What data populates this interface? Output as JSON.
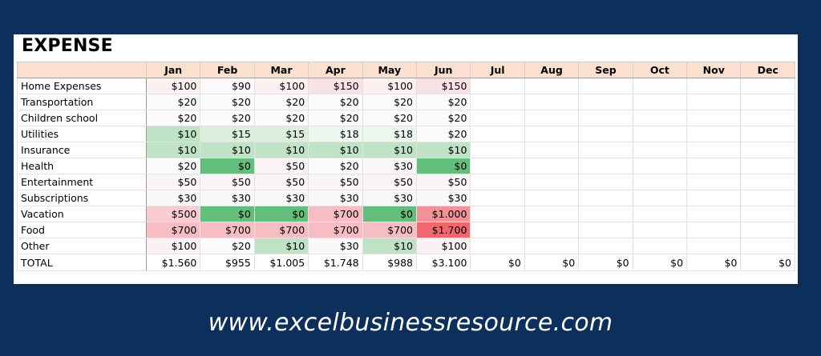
{
  "sheet": {
    "title": "EXPENSE",
    "months": [
      "Jan",
      "Feb",
      "Mar",
      "Apr",
      "May",
      "Jun",
      "Jul",
      "Aug",
      "Sep",
      "Oct",
      "Nov",
      "Dec"
    ],
    "rows": [
      {
        "label": "Home Expenses",
        "values": [
          "$100",
          "$90",
          "$100",
          "$150",
          "$100",
          "$150",
          "",
          "",
          "",
          "",
          "",
          ""
        ],
        "colors": [
          "#fbf1f3",
          "#fdf8f9",
          "#fbf1f3",
          "#f9e2e6",
          "#fbf1f3",
          "#f9e2e6",
          null,
          null,
          null,
          null,
          null,
          null
        ]
      },
      {
        "label": "Transportation",
        "values": [
          "$20",
          "$20",
          "$20",
          "$20",
          "$20",
          "$20",
          "",
          "",
          "",
          "",
          "",
          ""
        ],
        "colors": [
          "#fbfbfc",
          "#fbfbfc",
          "#fbfbfc",
          "#fbfbfc",
          "#fbfbfc",
          "#fbfbfc",
          null,
          null,
          null,
          null,
          null,
          null
        ]
      },
      {
        "label": "Children school",
        "values": [
          "$20",
          "$20",
          "$20",
          "$20",
          "$20",
          "$20",
          "",
          "",
          "",
          "",
          "",
          ""
        ],
        "colors": [
          "#fbfbfc",
          "#fbfbfc",
          "#fbfbfc",
          "#fbfbfc",
          "#fbfbfc",
          "#fbfbfc",
          null,
          null,
          null,
          null,
          null,
          null
        ]
      },
      {
        "label": "Utilities",
        "values": [
          "$10",
          "$15",
          "$15",
          "$18",
          "$18",
          "$20",
          "",
          "",
          "",
          "",
          "",
          ""
        ],
        "colors": [
          "#bfe3c4",
          "#dcefdf",
          "#dcefdf",
          "#eef7ef",
          "#eef7ef",
          "#fbfbfc",
          null,
          null,
          null,
          null,
          null,
          null
        ]
      },
      {
        "label": "Insurance",
        "values": [
          "$10",
          "$10",
          "$10",
          "$10",
          "$10",
          "$10",
          "",
          "",
          "",
          "",
          "",
          ""
        ],
        "colors": [
          "#bfe3c4",
          "#bfe3c4",
          "#bfe3c4",
          "#bfe3c4",
          "#bfe3c4",
          "#bfe3c4",
          null,
          null,
          null,
          null,
          null,
          null
        ]
      },
      {
        "label": "Health",
        "values": [
          "$20",
          "$0",
          "$50",
          "$20",
          "$30",
          "$0",
          "",
          "",
          "",
          "",
          "",
          ""
        ],
        "colors": [
          "#fbfbfc",
          "#63be7b",
          "#fbf4f6",
          "#fbfbfc",
          "#fbf8f9",
          "#63be7b",
          null,
          null,
          null,
          null,
          null,
          null
        ]
      },
      {
        "label": "Entertainment",
        "values": [
          "$50",
          "$50",
          "$50",
          "$50",
          "$50",
          "$50",
          "",
          "",
          "",
          "",
          "",
          ""
        ],
        "colors": [
          "#fbf4f6",
          "#fbf4f6",
          "#fbf4f6",
          "#fbf4f6",
          "#fbf4f6",
          "#fbf4f6",
          null,
          null,
          null,
          null,
          null,
          null
        ]
      },
      {
        "label": "Subscriptions",
        "values": [
          "$30",
          "$30",
          "$30",
          "$30",
          "$30",
          "$30",
          "",
          "",
          "",
          "",
          "",
          ""
        ],
        "colors": [
          "#fbf8f9",
          "#fbf8f9",
          "#fbf8f9",
          "#fbf8f9",
          "#fbf8f9",
          "#fbf8f9",
          null,
          null,
          null,
          null,
          null,
          null
        ]
      },
      {
        "label": "Vacation",
        "values": [
          "$500",
          "$0",
          "$0",
          "$700",
          "$0",
          "$1.000",
          "",
          "",
          "",
          "",
          "",
          ""
        ],
        "colors": [
          "#f8cdd1",
          "#63be7b",
          "#63be7b",
          "#f6bdc2",
          "#63be7b",
          "#f19198",
          null,
          null,
          null,
          null,
          null,
          null
        ]
      },
      {
        "label": "Food",
        "values": [
          "$700",
          "$700",
          "$700",
          "$700",
          "$700",
          "$1.700",
          "",
          "",
          "",
          "",
          "",
          ""
        ],
        "colors": [
          "#f6bdc2",
          "#f6bdc2",
          "#f6bdc2",
          "#f6bdc2",
          "#f6bdc2",
          "#f0676e",
          null,
          null,
          null,
          null,
          null,
          null
        ]
      },
      {
        "label": "Other",
        "values": [
          "$100",
          "$20",
          "$10",
          "$30",
          "$10",
          "$100",
          "",
          "",
          "",
          "",
          "",
          ""
        ],
        "colors": [
          "#fbf1f3",
          "#fbfbfc",
          "#bfe3c4",
          "#fbf8f9",
          "#bfe3c4",
          "#fbf1f3",
          null,
          null,
          null,
          null,
          null,
          null
        ]
      }
    ],
    "total": {
      "label": "TOTAL",
      "values": [
        "$1.560",
        "$955",
        "$1.005",
        "$1.748",
        "$988",
        "$3.100",
        "$0",
        "$0",
        "$0",
        "$0",
        "$0",
        "$0"
      ]
    }
  },
  "footer": {
    "url": "www.excelbusinessresource.com"
  }
}
